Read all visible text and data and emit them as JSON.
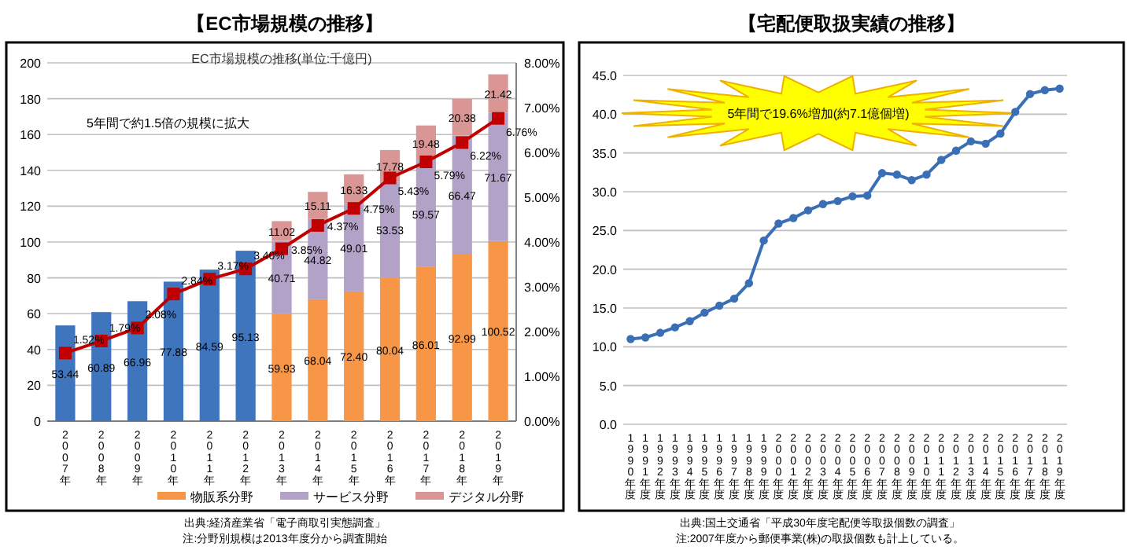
{
  "chart_data": [
    {
      "type": "bar",
      "title": "【EC市場規模の推移】",
      "subtitle": "EC市場規模の推移(単位:千億円)",
      "stacked": true,
      "categories": [
        "2007年",
        "2008年",
        "2009年",
        "2010年",
        "2011年",
        "2012年",
        "2013年",
        "2014年",
        "2015年",
        "2016年",
        "2017年",
        "2018年",
        "2019年"
      ],
      "series": [
        {
          "color": "#3f75bd",
          "values": [
            53.44,
            60.89,
            66.96,
            77.88,
            84.59,
            95.13,
            null,
            null,
            null,
            null,
            null,
            null,
            null
          ],
          "value_labels": [
            "53.44",
            "60.89",
            "66.96",
            "77.88",
            "84.59",
            "95.13",
            null,
            null,
            null,
            null,
            null,
            null,
            null
          ]
        },
        {
          "name": "物販系分野",
          "color": "#f79646",
          "values": [
            null,
            null,
            null,
            null,
            null,
            null,
            59.93,
            68.04,
            72.4,
            80.04,
            86.01,
            92.99,
            100.52
          ],
          "value_labels": [
            null,
            null,
            null,
            null,
            null,
            null,
            "59.93",
            "68.04",
            "72.40",
            "80.04",
            "86.01",
            "92.99",
            "100.52"
          ]
        },
        {
          "name": "サービス分野",
          "color": "#b3a2c7",
          "values": [
            null,
            null,
            null,
            null,
            null,
            null,
            40.71,
            44.82,
            49.01,
            53.53,
            59.57,
            66.47,
            71.67
          ],
          "value_labels": [
            null,
            null,
            null,
            null,
            null,
            null,
            "40.71",
            "44.82",
            "49.01",
            "53.53",
            "59.57",
            "66.47",
            "71.67"
          ]
        },
        {
          "name": "デジタル分野",
          "color": "#d99694",
          "values": [
            null,
            null,
            null,
            null,
            null,
            null,
            11.02,
            15.11,
            16.33,
            17.78,
            19.48,
            20.38,
            21.42
          ],
          "value_labels": [
            null,
            null,
            null,
            null,
            null,
            null,
            "11.02",
            "15.11",
            "16.33",
            "17.78",
            "19.48",
            "20.38",
            "21.42"
          ]
        },
        {
          "type": "line",
          "axis": "y2",
          "marker": "square",
          "color": "#c00000",
          "values": [
            1.52,
            1.79,
            2.08,
            2.84,
            3.17,
            3.4,
            3.85,
            4.37,
            4.75,
            5.43,
            5.79,
            6.22,
            6.76
          ],
          "value_labels": [
            "1.52%",
            "1.79%",
            "2.08%",
            "2.84%",
            "3.17%",
            "3.40%",
            "3.85%",
            "4.37%",
            "4.75%",
            "5.43%",
            "5.79%",
            "6.22%",
            "6.76%"
          ]
        }
      ],
      "ylim": [
        0,
        200
      ],
      "yticks": [
        0,
        20,
        40,
        60,
        80,
        100,
        120,
        140,
        160,
        180,
        200
      ],
      "y2lim": [
        0,
        8
      ],
      "y2ticks": [
        {
          "value": 0,
          "label": "0.00%"
        },
        {
          "value": 1,
          "label": "1.00%"
        },
        {
          "value": 2,
          "label": "2.00%"
        },
        {
          "value": 3,
          "label": "3.00%"
        },
        {
          "value": 4,
          "label": "4.00%"
        },
        {
          "value": 5,
          "label": "5.00%"
        },
        {
          "value": 6,
          "label": "6.00%"
        },
        {
          "value": 7,
          "label": "7.00%"
        },
        {
          "value": 8,
          "label": "8.00%"
        }
      ],
      "grid": "y",
      "legend": "bottom",
      "annotations": [
        "5年間で約1.5倍の規模に拡大",
        "出典:経済産業省「電子商取引実態調査」",
        "注:分野別規模は2013年度分から調査開始"
      ]
    },
    {
      "type": "line",
      "title": "【宅配便取扱実績の推移】",
      "marker": "circle",
      "color": "#3a6fb5",
      "grid": "y",
      "categories": [
        "1990年度",
        "1991年度",
        "1992年度",
        "1993年度",
        "1994年度",
        "1995年度",
        "1996年度",
        "1997年度",
        "1998年度",
        "1999年度",
        "2000年度",
        "2001年度",
        "2002年度",
        "2003年度",
        "2004年度",
        "2005年度",
        "2006年度",
        "2007年度",
        "2008年度",
        "2009年度",
        "2010年度",
        "2011年度",
        "2012年度",
        "2013年度",
        "2014年度",
        "2015年度",
        "2016年度",
        "2017年度",
        "2018年度",
        "2019年度"
      ],
      "values": [
        11.0,
        11.2,
        11.8,
        12.5,
        13.3,
        14.4,
        15.3,
        16.2,
        18.2,
        23.7,
        25.9,
        26.6,
        27.6,
        28.4,
        28.8,
        29.4,
        29.5,
        32.4,
        32.2,
        31.5,
        32.2,
        34.1,
        35.3,
        36.5,
        36.2,
        37.5,
        40.3,
        42.6,
        43.1,
        43.3
      ],
      "ylim": [
        0,
        45
      ],
      "yticks": [
        {
          "value": 0,
          "label": "0.0"
        },
        {
          "value": 5,
          "label": "5.0"
        },
        {
          "value": 10,
          "label": "10.0"
        },
        {
          "value": 15,
          "label": "15.0"
        },
        {
          "value": 20,
          "label": "20.0"
        },
        {
          "value": 25,
          "label": "25.0"
        },
        {
          "value": 30,
          "label": "30.0"
        },
        {
          "value": 35,
          "label": "35.0"
        },
        {
          "value": 40,
          "label": "40.0"
        },
        {
          "value": 45,
          "label": "45.0"
        }
      ],
      "annotations": [
        "5年間で19.6%増加(約7.1億個増)",
        "出典:国土交通省「平成30年度宅配便等取扱個数の調査」",
        "注:2007年度から郵便事業(株)の取扱個数も計上している。"
      ]
    }
  ]
}
